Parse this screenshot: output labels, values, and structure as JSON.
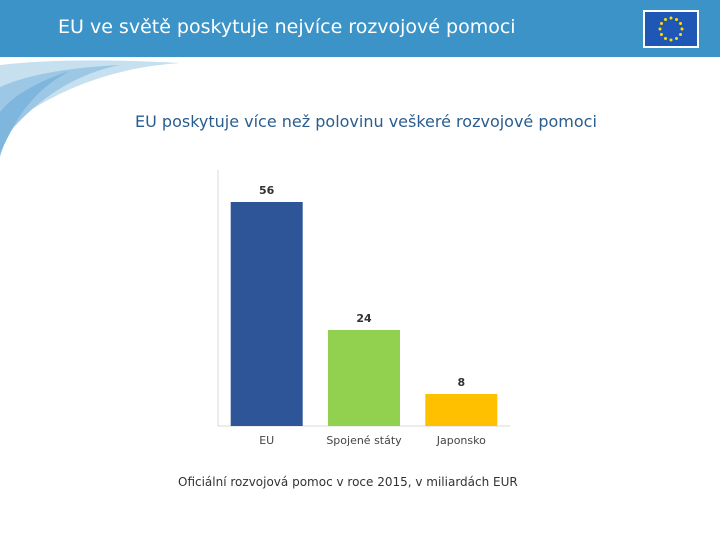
{
  "header": {
    "title": "EU ve světě poskytuje nejvíce rozvojové pomoci"
  },
  "subtitle": "EU poskytuje více než polovinu veškeré rozvojové pomoci",
  "caption": "Oficiální rozvojová pomoc v roce 2015, v miliardách EUR",
  "colors": {
    "header": "#3b93c8",
    "flag": "#1e57b5",
    "stars": "#ffdd00"
  },
  "chart_data": {
    "type": "bar",
    "categories": [
      "EU",
      "Spojené státy",
      "Japonsko"
    ],
    "values": [
      56,
      24,
      8
    ],
    "colors": [
      "#2e5597",
      "#92d050",
      "#ffc000"
    ],
    "ylim": [
      0,
      60
    ],
    "grid": false,
    "data_labels": true
  }
}
